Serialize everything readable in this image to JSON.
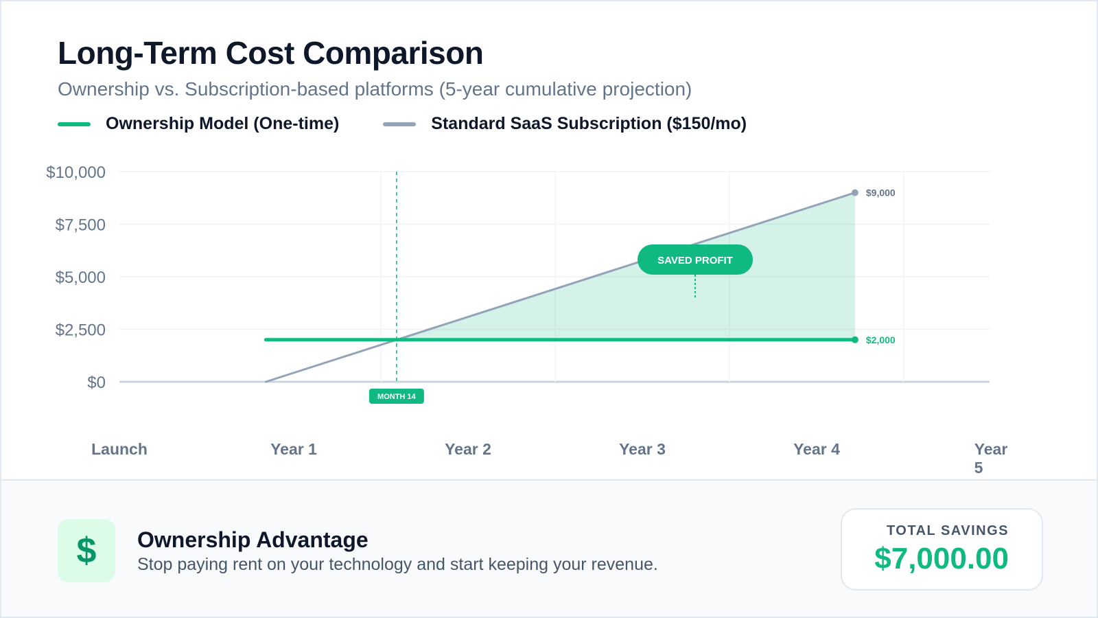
{
  "header": {
    "title": "Long-Term Cost Comparison",
    "subtitle": "Ownership vs. Subscription-based platforms (5-year cumulative projection)"
  },
  "legend": {
    "ownership_label": "Ownership Model (One-time)",
    "subscription_label": "Standard SaaS Subscription ($150/mo)"
  },
  "chart_data": {
    "type": "line",
    "y_ticks": [
      {
        "value": 0,
        "label": "$0"
      },
      {
        "value": 2500,
        "label": "$2,500"
      },
      {
        "value": 5000,
        "label": "$5,000"
      },
      {
        "value": 7500,
        "label": "$7,500"
      },
      {
        "value": 10000,
        "label": "$10,000"
      }
    ],
    "ylim": [
      0,
      10000
    ],
    "x_ticks": [
      "Launch",
      "Year 1",
      "Year 2",
      "Year 3",
      "Year 4",
      "Year 5"
    ],
    "series": [
      {
        "name": "Ownership Model (One-time)",
        "color": "#10b981",
        "points": [
          {
            "x": 0.84,
            "y": 2000
          },
          {
            "x": 4.22,
            "y": 2000
          }
        ],
        "end_label": "$2,000"
      },
      {
        "name": "Standard SaaS Subscription ($150/mo)",
        "color": "#94a3b8",
        "points": [
          {
            "x": 0.84,
            "y": 0
          },
          {
            "x": 4.22,
            "y": 9000
          }
        ],
        "end_label": "$9,000"
      }
    ],
    "break_even": {
      "x": 1.59,
      "label": "MONTH 14"
    },
    "savings_area_label": "SAVED PROFIT",
    "grid": true
  },
  "footer": {
    "icon": "dollar-icon",
    "icon_glyph": "$",
    "title": "Ownership Advantage",
    "text": "Stop paying rent on your technology and start keeping your revenue.",
    "savings_label": "TOTAL SAVINGS",
    "savings_value": "$7,000.00"
  }
}
